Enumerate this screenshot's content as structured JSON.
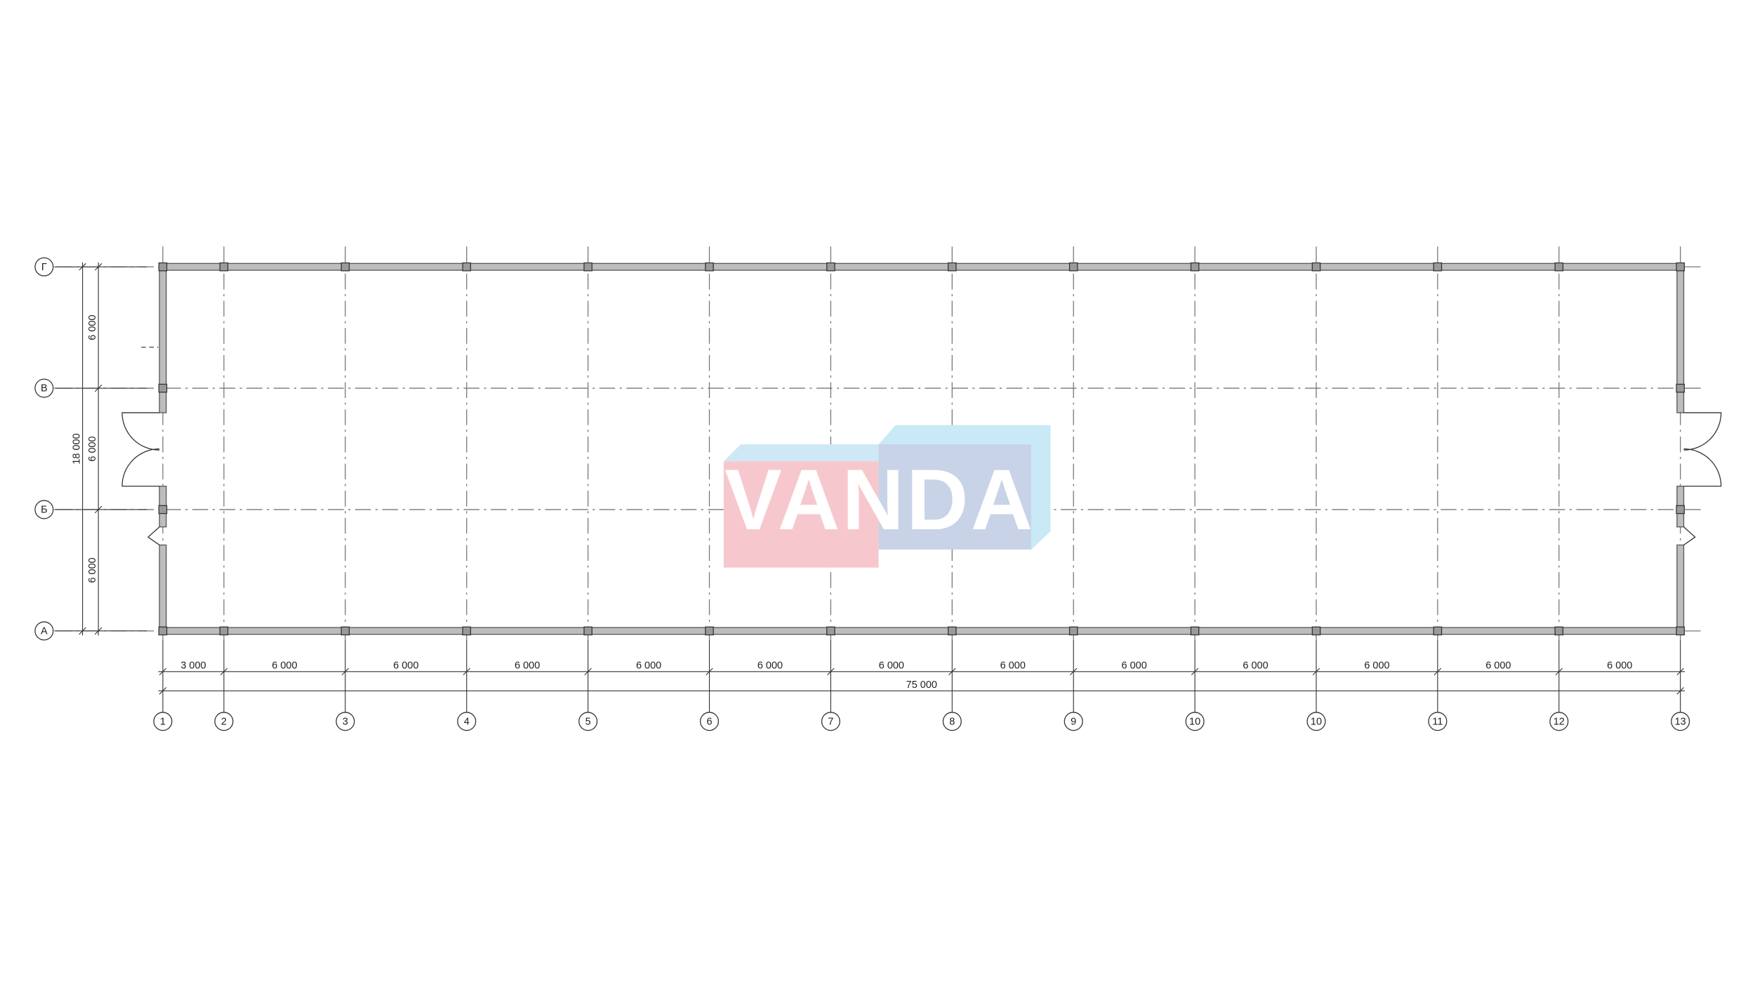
{
  "plan": {
    "column_axes": [
      "1",
      "2",
      "3",
      "4",
      "5",
      "6",
      "7",
      "8",
      "9",
      "10",
      "10",
      "11",
      "12",
      "13"
    ],
    "row_axes": [
      "Г",
      "В",
      "Б",
      "А"
    ],
    "column_dimensions": [
      "3 000",
      "6 000",
      "6 000",
      "6 000",
      "6 000",
      "6 000",
      "6 000",
      "6 000",
      "6 000",
      "6 000",
      "6 000",
      "6 000",
      "6 000"
    ],
    "overall_length": "75 000",
    "row_dimensions": [
      "6 000",
      "6 000",
      "6 000"
    ],
    "overall_width": "18 000"
  },
  "watermark": "VANDA"
}
